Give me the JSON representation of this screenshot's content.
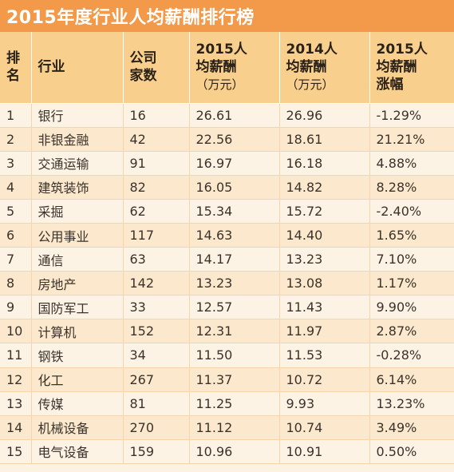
{
  "title": "2015年度行业人均薪酬排行榜",
  "headers": {
    "rank": [
      "排",
      "名"
    ],
    "industry": [
      "行业"
    ],
    "companies": [
      "公司",
      "家数"
    ],
    "salary_2015": [
      "2015人",
      "均薪酬",
      "（万元）"
    ],
    "salary_2014": [
      "2014人",
      "均薪酬",
      "（万元）"
    ],
    "growth_2015": [
      "2015人",
      "均薪酬",
      "涨幅"
    ]
  },
  "rows": [
    {
      "rank": "1",
      "industry": "银行",
      "companies": "16",
      "salary_2015": "26.61",
      "salary_2014": "26.96",
      "growth": "-1.29%"
    },
    {
      "rank": "2",
      "industry": "非银金融",
      "companies": "42",
      "salary_2015": "22.56",
      "salary_2014": "18.61",
      "growth": "21.21%"
    },
    {
      "rank": "3",
      "industry": "交通运输",
      "companies": "91",
      "salary_2015": "16.97",
      "salary_2014": "16.18",
      "growth": "4.88%"
    },
    {
      "rank": "4",
      "industry": "建筑装饰",
      "companies": "82",
      "salary_2015": "16.05",
      "salary_2014": "14.82",
      "growth": "8.28%"
    },
    {
      "rank": "5",
      "industry": "采掘",
      "companies": "62",
      "salary_2015": "15.34",
      "salary_2014": "15.72",
      "growth": "-2.40%"
    },
    {
      "rank": "6",
      "industry": "公用事业",
      "companies": "117",
      "salary_2015": "14.63",
      "salary_2014": "14.40",
      "growth": "1.65%"
    },
    {
      "rank": "7",
      "industry": "通信",
      "companies": "63",
      "salary_2015": "14.17",
      "salary_2014": "13.23",
      "growth": "7.10%"
    },
    {
      "rank": "8",
      "industry": "房地产",
      "companies": "142",
      "salary_2015": "13.23",
      "salary_2014": "13.08",
      "growth": "1.17%"
    },
    {
      "rank": "9",
      "industry": "国防军工",
      "companies": "33",
      "salary_2015": "12.57",
      "salary_2014": "11.43",
      "growth": "9.90%"
    },
    {
      "rank": "10",
      "industry": "计算机",
      "companies": "152",
      "salary_2015": "12.31",
      "salary_2014": "11.97",
      "growth": "2.87%"
    },
    {
      "rank": "11",
      "industry": "钢铁",
      "companies": "34",
      "salary_2015": "11.50",
      "salary_2014": "11.53",
      "growth": "-0.28%"
    },
    {
      "rank": "12",
      "industry": "化工",
      "companies": "267",
      "salary_2015": "11.37",
      "salary_2014": "10.72",
      "growth": "6.14%"
    },
    {
      "rank": "13",
      "industry": "传媒",
      "companies": "81",
      "salary_2015": "11.25",
      "salary_2014": "9.93",
      "growth": "13.23%"
    },
    {
      "rank": "14",
      "industry": "机械设备",
      "companies": "270",
      "salary_2015": "11.12",
      "salary_2014": "10.74",
      "growth": "3.49%"
    },
    {
      "rank": "15",
      "industry": "电气设备",
      "companies": "159",
      "salary_2015": "10.96",
      "salary_2014": "10.91",
      "growth": "0.50%"
    }
  ],
  "colors": {
    "title_bar": "#f29a4a",
    "header_row": "#f8cf8c",
    "row_odd": "#fdf3e4",
    "row_even": "#fbe8cd"
  }
}
